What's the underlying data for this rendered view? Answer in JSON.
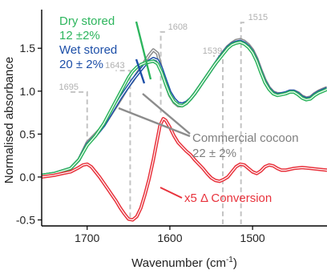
{
  "chart_data": {
    "type": "line",
    "xlabel": "Wavenumber (cm -1)",
    "xlabel_main": "Wavenumber (cm",
    "xlabel_sup": "-1",
    "xlabel_close": ")",
    "ylabel": "Normalised absorbance",
    "xlim": [
      1755,
      1410
    ],
    "ylim": [
      -0.57,
      1.95
    ],
    "x_reversed": true,
    "grid": false,
    "x_ticks": [
      1700,
      1600,
      1500
    ],
    "y_ticks": [
      -0.5,
      0.0,
      0.5,
      1.0,
      1.5
    ],
    "y_tick_labels": [
      "-0.5",
      "0.0",
      "0.5",
      "1.0",
      "1.5"
    ],
    "series": [
      {
        "key": "commercial",
        "color": "#8c8c8c",
        "x": [
          1755,
          1740,
          1720,
          1710,
          1700,
          1690,
          1680,
          1670,
          1660,
          1650,
          1645,
          1640,
          1635,
          1630,
          1625,
          1620,
          1615,
          1610,
          1605,
          1600,
          1595,
          1590,
          1585,
          1580,
          1575,
          1570,
          1565,
          1560,
          1555,
          1550,
          1545,
          1540,
          1535,
          1530,
          1525,
          1520,
          1515,
          1510,
          1505,
          1500,
          1495,
          1490,
          1485,
          1480,
          1475,
          1470,
          1465,
          1460,
          1455,
          1450,
          1445,
          1440,
          1435,
          1430,
          1425,
          1420,
          1415,
          1410
        ],
        "y": [
          0.02,
          0.04,
          0.1,
          0.2,
          0.4,
          0.5,
          0.6,
          0.75,
          0.9,
          1.06,
          1.12,
          1.2,
          1.27,
          1.35,
          1.42,
          1.48,
          1.44,
          1.25,
          1.08,
          0.95,
          0.87,
          0.83,
          0.83,
          0.86,
          0.91,
          0.97,
          1.04,
          1.11,
          1.18,
          1.25,
          1.32,
          1.39,
          1.46,
          1.52,
          1.56,
          1.59,
          1.6,
          1.58,
          1.54,
          1.48,
          1.38,
          1.25,
          1.13,
          1.04,
          0.99,
          0.97,
          0.97,
          0.98,
          1.0,
          1.0,
          0.98,
          0.94,
          0.92,
          0.93,
          0.97,
          1.0,
          1.02,
          1.04
        ]
      },
      {
        "key": "wet",
        "color": "#1d4fa8",
        "x": [
          1755,
          1740,
          1720,
          1710,
          1700,
          1690,
          1680,
          1670,
          1660,
          1650,
          1645,
          1640,
          1635,
          1630,
          1625,
          1620,
          1615,
          1610,
          1605,
          1600,
          1595,
          1590,
          1585,
          1580,
          1575,
          1570,
          1565,
          1560,
          1555,
          1550,
          1545,
          1540,
          1535,
          1530,
          1525,
          1520,
          1515,
          1510,
          1505,
          1500,
          1495,
          1490,
          1485,
          1480,
          1475,
          1470,
          1465,
          1460,
          1455,
          1450,
          1445,
          1440,
          1435,
          1430,
          1425,
          1420,
          1415,
          1410
        ],
        "y": [
          0.02,
          0.04,
          0.1,
          0.2,
          0.38,
          0.48,
          0.6,
          0.76,
          0.92,
          1.06,
          1.13,
          1.19,
          1.25,
          1.31,
          1.35,
          1.38,
          1.36,
          1.26,
          1.12,
          0.99,
          0.91,
          0.86,
          0.85,
          0.87,
          0.91,
          0.97,
          1.04,
          1.11,
          1.18,
          1.25,
          1.32,
          1.39,
          1.45,
          1.51,
          1.55,
          1.57,
          1.58,
          1.56,
          1.52,
          1.46,
          1.36,
          1.23,
          1.11,
          1.03,
          0.98,
          0.96,
          0.97,
          0.98,
          1.0,
          1.0,
          0.97,
          0.93,
          0.91,
          0.92,
          0.96,
          0.99,
          1.01,
          1.03
        ]
      },
      {
        "key": "dry",
        "color": "#2db55d",
        "x": [
          1755,
          1740,
          1720,
          1710,
          1700,
          1690,
          1680,
          1670,
          1660,
          1650,
          1645,
          1640,
          1635,
          1630,
          1625,
          1620,
          1615,
          1610,
          1605,
          1600,
          1595,
          1590,
          1585,
          1580,
          1575,
          1570,
          1565,
          1560,
          1555,
          1550,
          1545,
          1540,
          1535,
          1530,
          1525,
          1520,
          1515,
          1510,
          1505,
          1500,
          1495,
          1490,
          1485,
          1480,
          1475,
          1470,
          1465,
          1460,
          1455,
          1450,
          1445,
          1440,
          1435,
          1430,
          1425,
          1420,
          1415,
          1410
        ],
        "y": [
          0.02,
          0.04,
          0.1,
          0.2,
          0.37,
          0.48,
          0.62,
          0.8,
          0.98,
          1.16,
          1.23,
          1.28,
          1.31,
          1.33,
          1.34,
          1.35,
          1.32,
          1.22,
          1.08,
          0.96,
          0.88,
          0.84,
          0.83,
          0.86,
          0.91,
          0.97,
          1.04,
          1.11,
          1.18,
          1.25,
          1.32,
          1.38,
          1.44,
          1.5,
          1.54,
          1.56,
          1.57,
          1.55,
          1.51,
          1.45,
          1.35,
          1.22,
          1.1,
          1.02,
          0.97,
          0.95,
          0.96,
          0.97,
          0.99,
          0.99,
          0.96,
          0.92,
          0.9,
          0.91,
          0.95,
          0.98,
          1.0,
          1.02
        ]
      },
      {
        "key": "conversion",
        "color": "#e8323c",
        "x": [
          1755,
          1740,
          1730,
          1720,
          1710,
          1705,
          1700,
          1695,
          1690,
          1685,
          1680,
          1675,
          1670,
          1665,
          1660,
          1655,
          1650,
          1645,
          1640,
          1635,
          1630,
          1625,
          1620,
          1615,
          1612,
          1608,
          1605,
          1600,
          1595,
          1590,
          1585,
          1580,
          1575,
          1570,
          1565,
          1560,
          1555,
          1550,
          1545,
          1540,
          1535,
          1530,
          1525,
          1520,
          1515,
          1510,
          1505,
          1500,
          1495,
          1490,
          1485,
          1480,
          1475,
          1470,
          1465,
          1460,
          1450,
          1440,
          1430,
          1420,
          1410
        ],
        "y": [
          0.0,
          0.02,
          0.04,
          0.06,
          0.11,
          0.14,
          0.15,
          0.12,
          0.06,
          0.0,
          -0.07,
          -0.14,
          -0.21,
          -0.28,
          -0.36,
          -0.43,
          -0.49,
          -0.5,
          -0.46,
          -0.36,
          -0.2,
          -0.02,
          0.2,
          0.45,
          0.6,
          0.68,
          0.66,
          0.58,
          0.48,
          0.4,
          0.35,
          0.3,
          0.26,
          0.2,
          0.15,
          0.1,
          0.04,
          -0.01,
          -0.04,
          -0.05,
          -0.03,
          0.0,
          0.06,
          0.12,
          0.15,
          0.14,
          0.1,
          0.06,
          0.04,
          0.07,
          0.12,
          0.14,
          0.13,
          0.1,
          0.08,
          0.08,
          0.1,
          0.11,
          0.1,
          0.09,
          0.08
        ]
      }
    ],
    "peak_markers": [
      {
        "label": "1695",
        "x": 1700,
        "y_top": 0.99,
        "y_bottom": 0.38,
        "label_x_offset": -22
      },
      {
        "label": "1643",
        "x": 1648,
        "y_top": 1.24,
        "y_bottom": -0.47,
        "label_x_offset": -18
      },
      {
        "label": "1608",
        "x": 1611,
        "y_top": 1.69,
        "y_bottom": 0.75,
        "label_x_offset": 8
      },
      {
        "label": "1539",
        "x": 1536,
        "y_top": 1.41,
        "y_bottom": -0.55,
        "label_x_offset": -12
      },
      {
        "label": "1515",
        "x": 1514,
        "y_top": 1.8,
        "y_bottom": -0.55,
        "label_x_offset": 8
      }
    ],
    "annotations": [
      {
        "key": "dry",
        "lines": [
          "Dry stored",
          "12 ±2%"
        ],
        "color": "#2db55d"
      },
      {
        "key": "wet",
        "lines": [
          "Wet stored",
          "20 ± 2%"
        ],
        "color": "#1d4fa8"
      },
      {
        "key": "commercial",
        "lines": [
          "Commercial cocoon",
          "22 ± 2%"
        ],
        "color": "#7f7f7f"
      },
      {
        "key": "conversion",
        "lines": [
          "x5 Δ Conversion"
        ],
        "color": "#e8323c"
      }
    ]
  }
}
